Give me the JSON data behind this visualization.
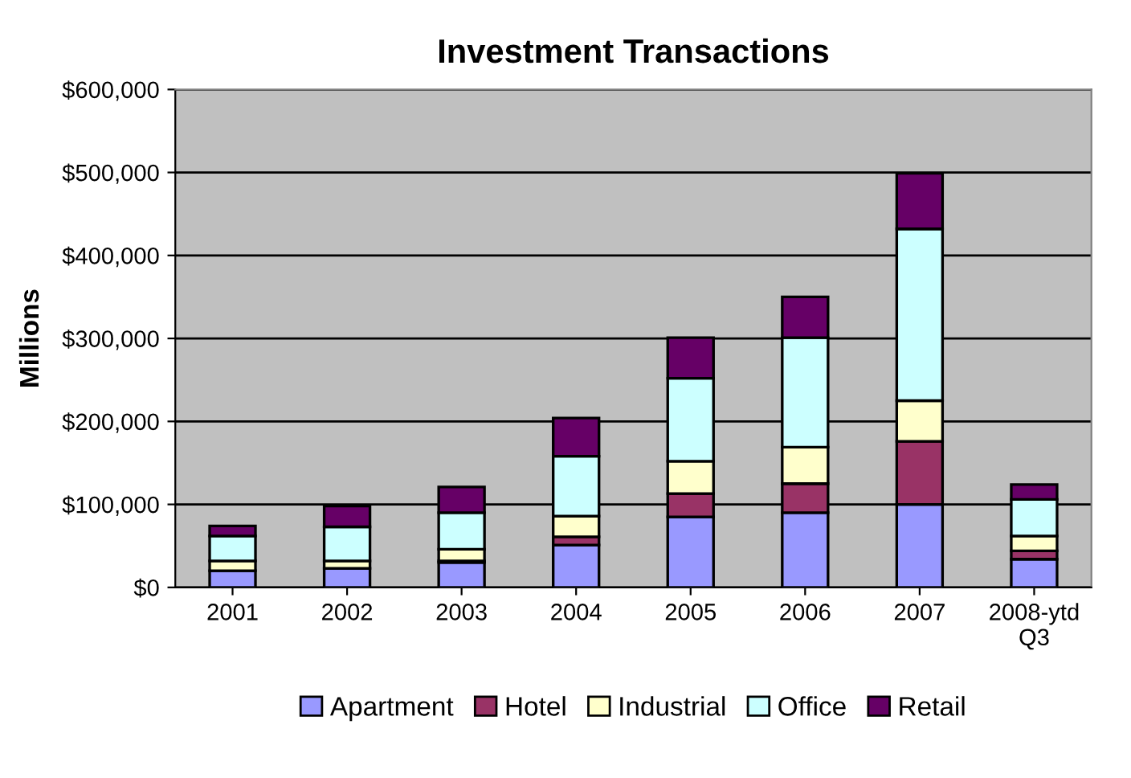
{
  "chart_data": {
    "type": "bar",
    "title": "Investment Transactions",
    "ylabel": "Millions",
    "stacked": true,
    "categories": [
      "2001",
      "2002",
      "2003",
      "2004",
      "2005",
      "2006",
      "2007",
      "2008-ytd\nQ3"
    ],
    "series": [
      {
        "name": "Apartment",
        "color": "#9999ff",
        "values": [
          20000,
          23000,
          30000,
          51000,
          85000,
          90000,
          100000,
          34000
        ]
      },
      {
        "name": "Hotel",
        "color": "#993366",
        "values": [
          null,
          null,
          2000,
          10000,
          28000,
          35000,
          76000,
          10000
        ]
      },
      {
        "name": "Industrial",
        "color": "#ffffcc",
        "values": [
          12000,
          9000,
          14000,
          25000,
          39000,
          44000,
          49000,
          18000
        ]
      },
      {
        "name": "Office",
        "color": "#ccffff",
        "values": [
          30000,
          41000,
          44000,
          72000,
          100000,
          132000,
          207000,
          44000
        ]
      },
      {
        "name": "Retail",
        "color": "#660066",
        "values": [
          12000,
          25000,
          31000,
          46000,
          49000,
          49000,
          67000,
          18000
        ]
      }
    ],
    "ylim": [
      0,
      600000
    ],
    "yticks": [
      {
        "value": 0,
        "label": "$0"
      },
      {
        "value": 100000,
        "label": "$100,000"
      },
      {
        "value": 200000,
        "label": "$200,000"
      },
      {
        "value": 300000,
        "label": "$300,000"
      },
      {
        "value": 400000,
        "label": "$400,000"
      },
      {
        "value": 500000,
        "label": "$500,000"
      },
      {
        "value": 600000,
        "label": "$600,000"
      }
    ],
    "grid": "y",
    "legend": "bottom"
  }
}
